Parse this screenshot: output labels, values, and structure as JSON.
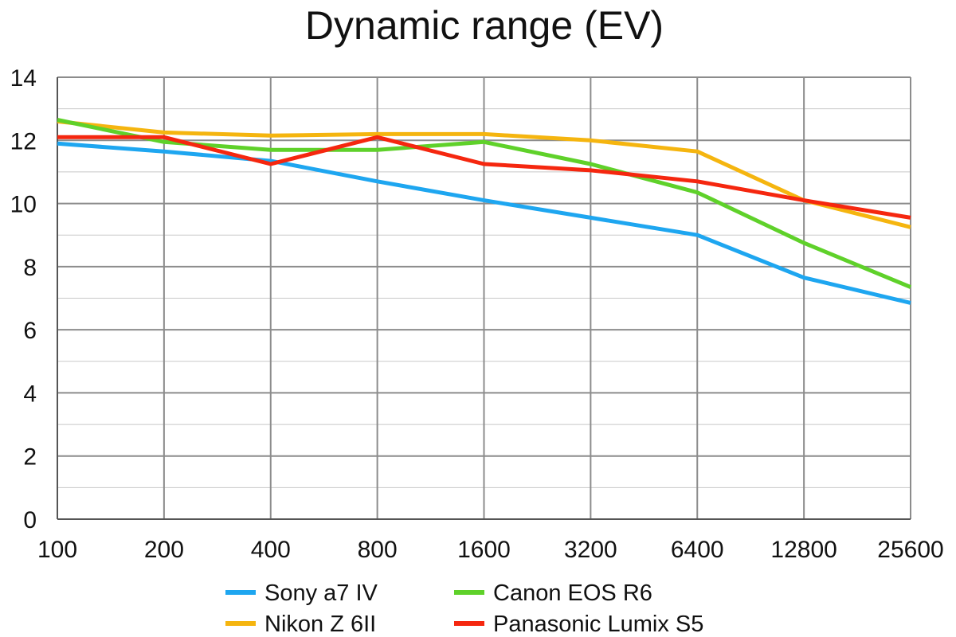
{
  "chart_data": {
    "type": "line",
    "title": "Dynamic range (EV)",
    "xlabel": "",
    "ylabel": "",
    "x": [
      "100",
      "200",
      "400",
      "800",
      "1600",
      "3200",
      "6400",
      "12800",
      "25600"
    ],
    "ylim": [
      0,
      14
    ],
    "yticks": [
      "0",
      "2",
      "4",
      "6",
      "8",
      "10",
      "12",
      "14"
    ],
    "grid": true,
    "legend_position": "bottom",
    "series": [
      {
        "name": "Sony a7 IV",
        "color": "#1ea6f0",
        "values": [
          11.9,
          11.65,
          11.35,
          10.7,
          10.1,
          9.55,
          9.0,
          7.65,
          6.85
        ]
      },
      {
        "name": "Nikon Z 6II",
        "color": "#f5b50f",
        "values": [
          12.6,
          12.25,
          12.15,
          12.2,
          12.2,
          12.0,
          11.65,
          10.1,
          9.25
        ]
      },
      {
        "name": "Canon EOS R6",
        "color": "#5fd12a",
        "values": [
          12.65,
          11.95,
          11.7,
          11.7,
          11.95,
          11.25,
          10.35,
          8.75,
          7.35
        ]
      },
      {
        "name": "Panasonic Lumix S5",
        "color": "#f5270f",
        "values": [
          12.1,
          12.1,
          11.25,
          12.1,
          11.25,
          11.05,
          10.7,
          10.1,
          9.55
        ]
      }
    ]
  }
}
